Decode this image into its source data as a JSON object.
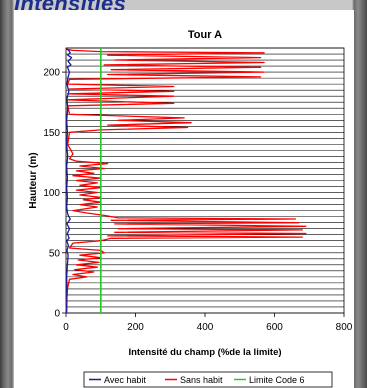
{
  "page": {
    "header_text": "Intensities"
  },
  "chart_data": {
    "type": "line",
    "title": "Tour A",
    "xlabel": "Intensité du champ (%de la limite)",
    "ylabel": "Hauteur (m)",
    "xlim": [
      0,
      800
    ],
    "ylim": [
      0,
      220
    ],
    "xticks": [
      0,
      200,
      400,
      600,
      800
    ],
    "yticks": [
      0,
      50,
      100,
      150,
      200
    ],
    "grid": "horizontal, every 5 m",
    "legend_position": "bottom",
    "series": [
      {
        "name": "Avec habit",
        "color": "#1a1aa6",
        "points": [
          [
            2,
            0
          ],
          [
            3,
            20
          ],
          [
            2,
            30
          ],
          [
            4,
            40
          ],
          [
            6,
            48
          ],
          [
            3,
            52
          ],
          [
            7,
            56
          ],
          [
            2,
            60
          ],
          [
            9,
            62
          ],
          [
            4,
            66
          ],
          [
            10,
            70
          ],
          [
            3,
            74
          ],
          [
            12,
            78
          ],
          [
            5,
            82
          ],
          [
            2,
            88
          ],
          [
            4,
            96
          ],
          [
            2,
            104
          ],
          [
            4,
            112
          ],
          [
            2,
            122
          ],
          [
            5,
            130
          ],
          [
            2,
            140
          ],
          [
            4,
            150
          ],
          [
            2,
            160
          ],
          [
            5,
            170
          ],
          [
            3,
            178
          ],
          [
            8,
            184
          ],
          [
            3,
            190
          ],
          [
            6,
            196
          ],
          [
            10,
            200
          ],
          [
            4,
            204
          ],
          [
            14,
            206
          ],
          [
            6,
            209
          ],
          [
            16,
            212
          ],
          [
            5,
            214
          ],
          [
            12,
            216
          ],
          [
            8,
            218
          ],
          [
            3,
            219
          ]
        ]
      },
      {
        "name": "Sans habit",
        "color": "#ff0000",
        "points": [
          [
            0,
            0
          ],
          [
            2,
            10
          ],
          [
            4,
            20
          ],
          [
            10,
            28
          ],
          [
            60,
            30
          ],
          [
            20,
            32
          ],
          [
            80,
            34
          ],
          [
            25,
            36
          ],
          [
            90,
            38
          ],
          [
            30,
            40
          ],
          [
            95,
            42
          ],
          [
            35,
            44
          ],
          [
            100,
            46
          ],
          [
            40,
            48
          ],
          [
            110,
            50
          ],
          [
            100,
            52
          ],
          [
            10,
            54
          ],
          [
            20,
            58
          ],
          [
            100,
            60
          ],
          [
            130,
            62
          ],
          [
            680,
            63
          ],
          [
            120,
            64
          ],
          [
            690,
            66
          ],
          [
            140,
            67
          ],
          [
            680,
            69
          ],
          [
            150,
            70
          ],
          [
            690,
            72
          ],
          [
            140,
            74
          ],
          [
            670,
            75
          ],
          [
            130,
            77
          ],
          [
            660,
            78
          ],
          [
            150,
            79
          ],
          [
            110,
            81
          ],
          [
            60,
            83
          ],
          [
            20,
            85
          ],
          [
            90,
            88
          ],
          [
            40,
            90
          ],
          [
            100,
            92
          ],
          [
            50,
            94
          ],
          [
            100,
            96
          ],
          [
            40,
            98
          ],
          [
            90,
            100
          ],
          [
            30,
            102
          ],
          [
            100,
            104
          ],
          [
            40,
            106
          ],
          [
            90,
            108
          ],
          [
            30,
            110
          ],
          [
            100,
            112
          ],
          [
            20,
            114
          ],
          [
            80,
            116
          ],
          [
            30,
            118
          ],
          [
            110,
            120
          ],
          [
            40,
            122
          ],
          [
            120,
            124
          ],
          [
            30,
            126
          ],
          [
            10,
            128
          ],
          [
            20,
            132
          ],
          [
            5,
            140
          ],
          [
            10,
            150
          ],
          [
            100,
            152
          ],
          [
            350,
            154
          ],
          [
            120,
            156
          ],
          [
            360,
            158
          ],
          [
            150,
            160
          ],
          [
            340,
            162
          ],
          [
            10,
            165
          ],
          [
            5,
            172
          ],
          [
            310,
            174
          ],
          [
            5,
            177
          ],
          [
            310,
            180
          ],
          [
            5,
            182
          ],
          [
            310,
            184
          ],
          [
            8,
            186
          ],
          [
            310,
            188
          ],
          [
            5,
            190
          ],
          [
            10,
            194
          ],
          [
            560,
            196
          ],
          [
            120,
            198
          ],
          [
            570,
            200
          ],
          [
            130,
            202
          ],
          [
            560,
            204
          ],
          [
            110,
            206
          ],
          [
            570,
            208
          ],
          [
            140,
            210
          ],
          [
            560,
            212
          ],
          [
            120,
            214
          ],
          [
            570,
            216
          ],
          [
            100,
            217
          ],
          [
            20,
            218
          ],
          [
            0,
            219
          ]
        ]
      },
      {
        "name": "Limite Code 6",
        "color": "#22cc22",
        "points": [
          [
            100,
            0
          ],
          [
            100,
            220
          ]
        ]
      }
    ]
  }
}
